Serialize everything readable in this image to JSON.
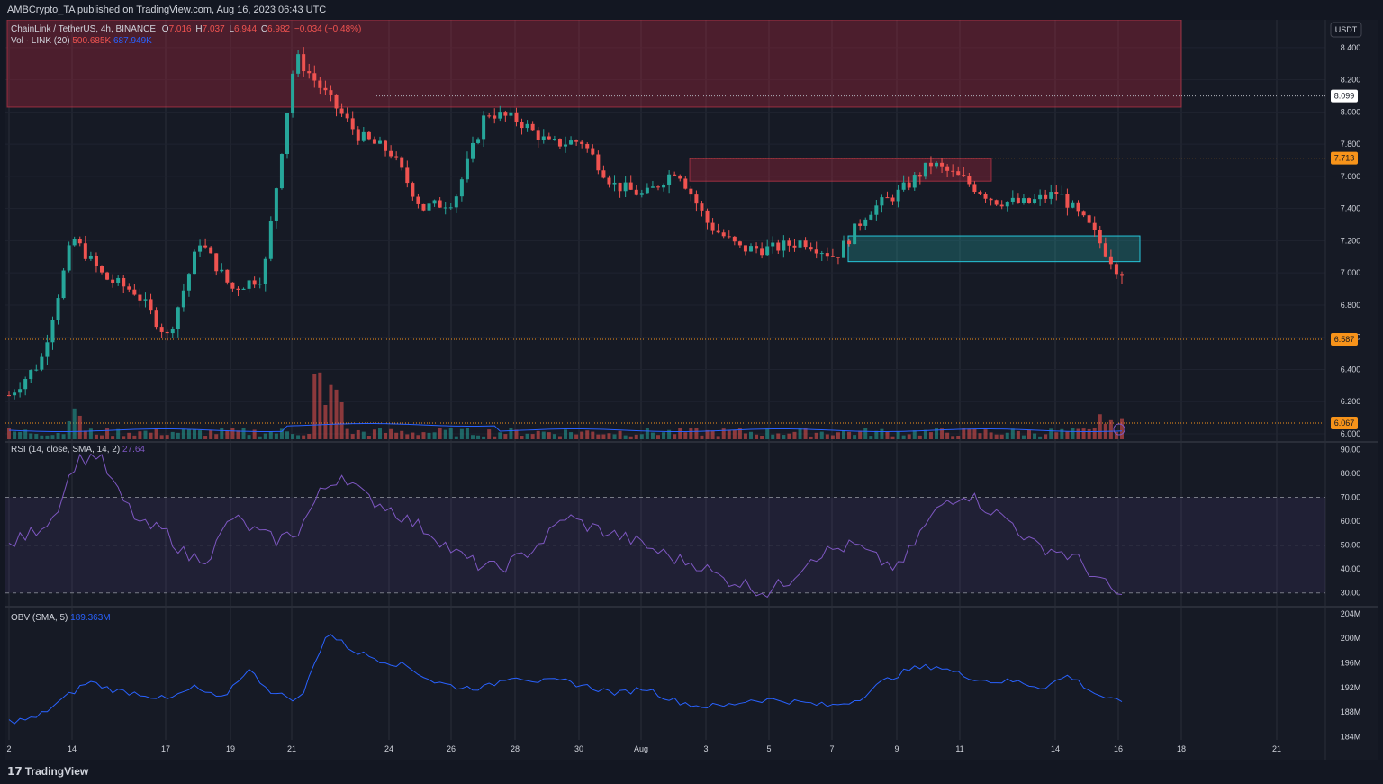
{
  "header": {
    "publisher": "AMBCrypto_TA published on TradingView.com, Aug 16, 2023 06:43 UTC"
  },
  "legend": {
    "symbol": "ChainLink / TetherUS, 4h, BINANCE",
    "o_label": "O",
    "o": "7.016",
    "h_label": "H",
    "h": "7.037",
    "l_label": "L",
    "l": "6.944",
    "c_label": "C",
    "c": "6.982",
    "change": "−0.034 (−0.48%)",
    "vol_label": "Vol · LINK (20)",
    "vol_value": "500.685K",
    "vol_ma": "687.949K",
    "rsi_label": "RSI (14, close, SMA, 14, 2)",
    "rsi_value": "27.64",
    "obv_label": "OBV (SMA, 5)",
    "obv_value": "189.363M"
  },
  "colors": {
    "background": "#161a25",
    "bull": "#26a69a",
    "bear": "#ef5350",
    "rsi_line": "#7e57c2",
    "obv_line": "#2962ff",
    "level_line": "#f7931a",
    "supply_zone": "#6b1f2a",
    "demand_zone": "#1e6b6b"
  },
  "footer": {
    "brand": "TradingView"
  },
  "chart_data": [
    {
      "type": "candlestick",
      "title": "ChainLink / TetherUS, 4h, BINANCE",
      "currency": "USDT",
      "y_ticks": [
        "8.400",
        "8.200",
        "8.000",
        "7.800",
        "7.600",
        "7.400",
        "7.200",
        "7.000",
        "6.800",
        "6.600",
        "6.400",
        "6.200",
        "6.000"
      ],
      "price_labels": [
        "8.099",
        "7.713",
        "6.587",
        "6.067"
      ],
      "x_ticks": [
        "2",
        "14",
        "17",
        "19",
        "21",
        "24",
        "26",
        "28",
        "30",
        "Aug",
        "3",
        "5",
        "7",
        "9",
        "11",
        "14",
        "16",
        "18",
        "21"
      ],
      "ylim": [
        6.0,
        8.55
      ],
      "key_levels": [
        8.099,
        7.713,
        6.587,
        6.067
      ],
      "zones": [
        {
          "type": "supply",
          "from": "2",
          "to": "18",
          "low": 8.03,
          "high": 8.76
        },
        {
          "type": "supply",
          "from": "3",
          "to": "11",
          "low": 7.57,
          "high": 7.71
        },
        {
          "type": "demand",
          "from": "7",
          "to": "16",
          "low": 7.07,
          "high": 7.23
        }
      ],
      "ohlc_points": [
        {
          "x": "Jul 12",
          "close": 6.24
        },
        {
          "x": "Jul 13",
          "close": 6.45
        },
        {
          "x": "Jul 14",
          "close": 7.22
        },
        {
          "x": "Jul 15",
          "close": 6.97
        },
        {
          "x": "Jul 16",
          "close": 6.88
        },
        {
          "x": "Jul 17",
          "close": 6.6
        },
        {
          "x": "Jul 18",
          "close": 7.2
        },
        {
          "x": "Jul 19",
          "close": 6.9
        },
        {
          "x": "Jul 20",
          "close": 6.98
        },
        {
          "x": "Jul 21",
          "close": 8.35
        },
        {
          "x": "Jul 22",
          "close": 8.1
        },
        {
          "x": "Jul 23",
          "close": 7.85
        },
        {
          "x": "Jul 24",
          "close": 7.75
        },
        {
          "x": "Jul 25",
          "close": 7.4
        },
        {
          "x": "Jul 26",
          "close": 7.45
        },
        {
          "x": "Jul 27",
          "close": 8.0
        },
        {
          "x": "Jul 28",
          "close": 7.95
        },
        {
          "x": "Jul 29",
          "close": 7.8
        },
        {
          "x": "Jul 30",
          "close": 7.82
        },
        {
          "x": "Jul 31",
          "close": 7.55
        },
        {
          "x": "Aug 1",
          "close": 7.48
        },
        {
          "x": "Aug 2",
          "close": 7.65
        },
        {
          "x": "Aug 3",
          "close": 7.3
        },
        {
          "x": "Aug 4",
          "close": 7.15
        },
        {
          "x": "Aug 5",
          "close": 7.15
        },
        {
          "x": "Aug 6",
          "close": 7.2
        },
        {
          "x": "Aug 7",
          "close": 7.1
        },
        {
          "x": "Aug 8",
          "close": 7.38
        },
        {
          "x": "Aug 9",
          "close": 7.5
        },
        {
          "x": "Aug 10",
          "close": 7.68
        },
        {
          "x": "Aug 11",
          "close": 7.58
        },
        {
          "x": "Aug 12",
          "close": 7.45
        },
        {
          "x": "Aug 13",
          "close": 7.43
        },
        {
          "x": "Aug 14",
          "close": 7.5
        },
        {
          "x": "Aug 15",
          "close": 7.28
        },
        {
          "x": "Aug 16",
          "close": 6.982
        }
      ]
    },
    {
      "type": "bar",
      "title": "Vol · LINK (20)",
      "series": [
        {
          "name": "500.685K",
          "note": "volume"
        },
        {
          "name": "687.949K",
          "note": "volume MA"
        }
      ]
    },
    {
      "type": "line",
      "title": "RSI (14, close, SMA, 14, 2)",
      "ylim": [
        25,
        92
      ],
      "y_ticks": [
        "90.00",
        "80.00",
        "70.00",
        "60.00",
        "50.00",
        "40.00",
        "30.00"
      ],
      "band": [
        30,
        70
      ],
      "values": [
        50,
        55,
        62,
        85,
        88,
        70,
        58,
        56,
        45,
        45,
        62,
        56,
        52,
        56,
        72,
        80,
        70,
        66,
        60,
        55,
        47,
        42,
        40,
        45,
        52,
        62,
        58,
        55,
        52,
        48,
        44,
        42,
        36,
        34,
        30,
        35,
        45,
        48,
        50,
        44,
        40,
        56,
        68,
        72,
        65,
        60,
        50,
        48,
        44,
        35,
        28
      ]
    },
    {
      "type": "line",
      "title": "OBV (SMA, 5)",
      "ylim": [
        183.5,
        205
      ],
      "y_ticks": [
        "204M",
        "200M",
        "196M",
        "192M",
        "188M",
        "184M"
      ],
      "values": [
        186.5,
        187,
        190,
        193,
        191.5,
        191,
        190,
        192,
        190,
        195,
        191,
        190,
        201,
        198,
        196.5,
        195.5,
        193,
        192,
        192,
        194,
        193,
        193,
        192,
        191,
        192,
        190,
        189,
        189,
        190,
        190,
        189.5,
        189,
        190,
        193,
        195,
        195.5,
        194,
        193,
        193,
        192,
        194,
        191,
        189.4
      ]
    }
  ]
}
